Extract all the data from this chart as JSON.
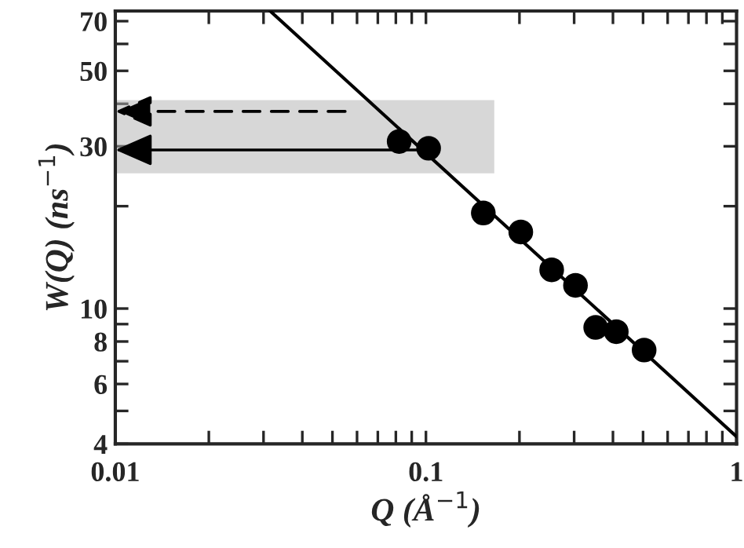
{
  "chart_data": {
    "type": "scatter",
    "xlabel": "Q (Å$^{−1}$)",
    "ylabel": "W(Q) (ns$^{−1}$)",
    "log": "xy",
    "grid": false,
    "legend": false,
    "bands": [
      {
        "axis": "y",
        "from": 25,
        "to": 41,
        "color": "#b0b0b0"
      }
    ],
    "xlim": [
      0.01,
      1
    ],
    "ylim": [
      4,
      75
    ],
    "xticks": [
      0.01,
      {
        "value": 0.02,
        "label": null
      },
      {
        "value": 0.03,
        "label": null
      },
      {
        "value": 0.04,
        "label": null
      },
      {
        "value": 0.05,
        "label": null
      },
      {
        "value": 0.06,
        "label": null
      },
      {
        "value": 0.07,
        "label": null
      },
      {
        "value": 0.08,
        "label": null
      },
      {
        "value": 0.09,
        "label": null
      },
      0.1,
      {
        "value": 0.2,
        "label": null
      },
      {
        "value": 0.3,
        "label": null
      },
      {
        "value": 0.4,
        "label": null
      },
      {
        "value": 0.5,
        "label": null
      },
      {
        "value": 0.6,
        "label": null
      },
      {
        "value": 0.7,
        "label": null
      },
      {
        "value": 0.8,
        "label": null
      },
      {
        "value": 0.9,
        "label": null
      },
      1
    ],
    "yticks": [
      4,
      {
        "value": 5,
        "label": null
      },
      6,
      {
        "value": 7,
        "label": null
      },
      8,
      {
        "value": 9,
        "label": null
      },
      10,
      {
        "value": 20,
        "label": null
      },
      30,
      {
        "value": 40,
        "label": null
      },
      50,
      {
        "value": 60,
        "label": null
      },
      70
    ],
    "series": [
      {
        "color": "#000000",
        "marker": "circle",
        "x": [
          0.082,
          0.102,
          0.153,
          0.202,
          0.254,
          0.303,
          0.352,
          0.41,
          0.504
        ],
        "values": [
          31,
          29.6,
          19.1,
          16.8,
          13.0,
          11.7,
          8.8,
          8.55,
          7.55
        ]
      },
      {
        "type": "line",
        "color": "#000000",
        "line_style": "solid",
        "marker": "none",
        "x": [
          0.0315,
          1
        ],
        "values": [
          75,
          4.2
        ]
      }
    ]
  }
}
